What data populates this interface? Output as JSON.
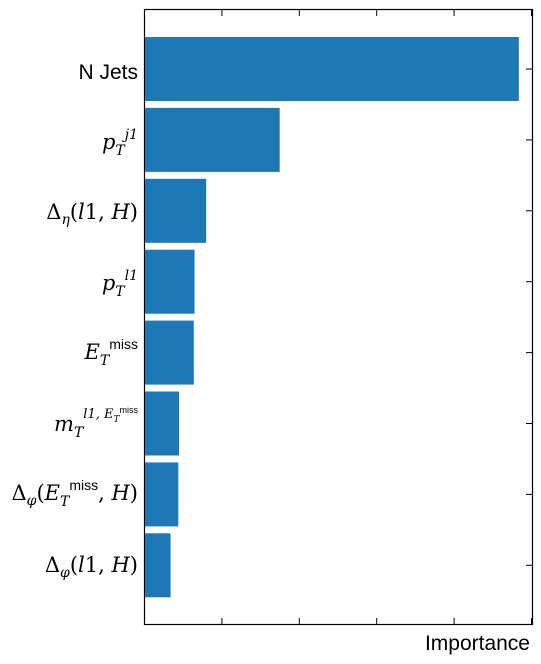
{
  "chart_data": {
    "type": "bar",
    "orientation": "horizontal",
    "title": "",
    "xlabel": "Importance",
    "ylabel": "",
    "grid": false,
    "bar_color": "#1f77b4",
    "xlim": [
      0,
      0.5
    ],
    "x_tick_labels_shown": false,
    "categories": [
      {
        "label": "N Jets",
        "value": 0.483
      },
      {
        "label": "p_T^{j1}",
        "value": 0.174
      },
      {
        "label": "Δ_η(l1, H)",
        "value": 0.079
      },
      {
        "label": "p_T^{l1}",
        "value": 0.064
      },
      {
        "label": "E_T^{miss}",
        "value": 0.063
      },
      {
        "label": "m_T^{l1, E_T^{miss}}",
        "value": 0.044
      },
      {
        "label": "Δ_φ(E_T^{miss}, H)",
        "value": 0.043
      },
      {
        "label": "Δ_φ(l1, H)",
        "value": 0.033
      }
    ]
  }
}
